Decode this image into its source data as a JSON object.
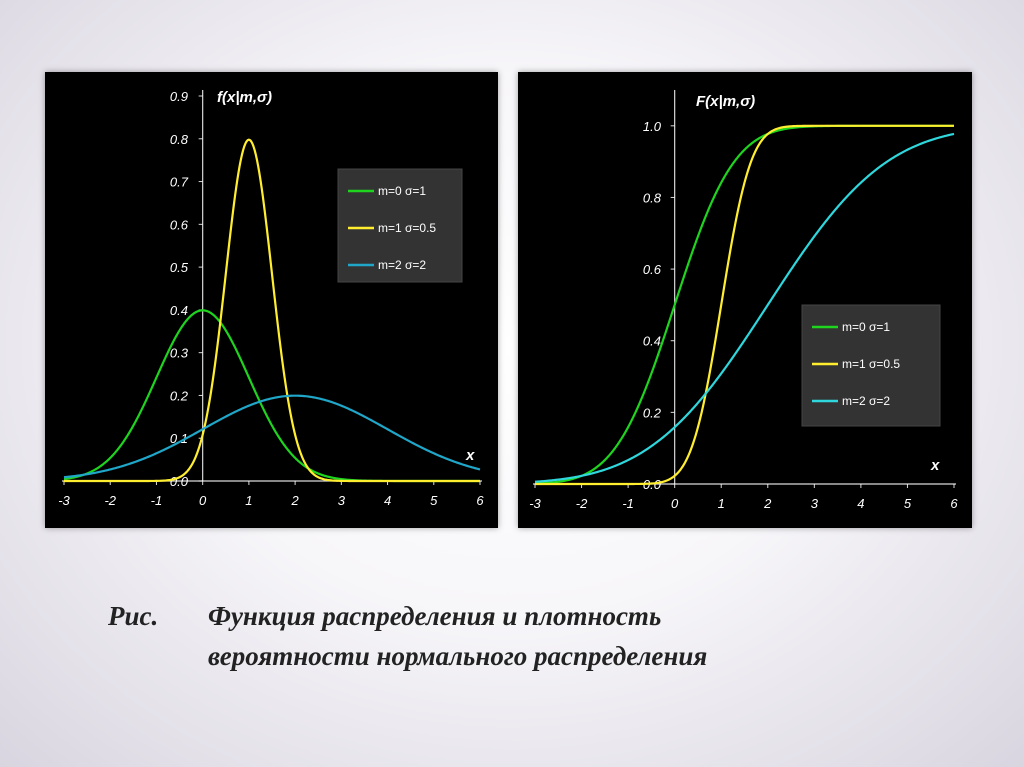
{
  "caption": {
    "prefix": "Рис.",
    "line1": "Функция распределения и плотность",
    "line2": "вероятности нормального распределения"
  },
  "chart_data": [
    {
      "type": "line",
      "title": "",
      "ylabel": "f(x|m,σ)",
      "xlabel": "x",
      "xlim": [
        -3,
        6
      ],
      "ylim": [
        0,
        0.9
      ],
      "x_ticks": [
        -3,
        -2,
        -1,
        0,
        1,
        2,
        3,
        4,
        5,
        6
      ],
      "y_ticks": [
        "0.0",
        "0.1",
        "0.2",
        "0.3",
        "0.4",
        "0.5",
        "0.6",
        "0.7",
        "0.8",
        "0.9"
      ],
      "grid": false,
      "legend_position": "top-right",
      "x": [
        -3,
        -2.5,
        -2,
        -1.5,
        -1,
        -0.5,
        0,
        0.25,
        0.5,
        0.75,
        1,
        1.25,
        1.5,
        2,
        2.5,
        3,
        4,
        5,
        6
      ],
      "series": [
        {
          "name": "m=0  σ=1",
          "color": "#1fd41f",
          "function": "pdf",
          "m": 0,
          "s": 1,
          "values": [
            0.004,
            0.018,
            0.054,
            0.13,
            0.242,
            0.352,
            0.399,
            0.387,
            0.352,
            0.301,
            0.242,
            0.183,
            0.13,
            0.054,
            0.018,
            0.004,
            0.0,
            0.0,
            0.0
          ]
        },
        {
          "name": "m=1  σ=0.5",
          "color": "#ffee30",
          "function": "pdf",
          "m": 1,
          "s": 0.5,
          "values": [
            0.0,
            0.0,
            0.0,
            0.0,
            0.0,
            0.0,
            0.108,
            0.259,
            0.484,
            0.704,
            0.798,
            0.704,
            0.484,
            0.108,
            0.009,
            0.0,
            0.0,
            0.0,
            0.0
          ]
        },
        {
          "name": "m=2  σ=2",
          "color": "#1fa6c8",
          "function": "pdf",
          "m": 2,
          "s": 2,
          "values": [
            0.009,
            0.016,
            0.027,
            0.043,
            0.065,
            0.091,
            0.121,
            0.135,
            0.151,
            0.166,
            0.176,
            0.188,
            0.193,
            0.199,
            0.193,
            0.176,
            0.121,
            0.065,
            0.027
          ]
        }
      ]
    },
    {
      "type": "line",
      "title": "",
      "ylabel": "F(x|m,σ)",
      "xlabel": "x",
      "xlim": [
        -3,
        6
      ],
      "ylim": [
        0,
        1.1
      ],
      "x_ticks": [
        -3,
        -2,
        -1,
        0,
        1,
        2,
        3,
        4,
        5,
        6
      ],
      "y_ticks": [
        "0.0",
        "0.2",
        "0.4",
        "0.6",
        "0.8",
        "1.0"
      ],
      "y_tick_values": [
        0,
        0.2,
        0.4,
        0.6,
        0.8,
        1.0
      ],
      "grid": false,
      "legend_position": "center-right",
      "x": [
        -3,
        -2,
        -1,
        -0.5,
        0,
        0.5,
        1,
        1.5,
        2,
        3,
        4,
        5,
        6
      ],
      "series": [
        {
          "name": "m=0  σ=1",
          "color": "#1fd41f",
          "function": "cdf",
          "m": 0,
          "s": 1,
          "values": [
            0.001,
            0.023,
            0.159,
            0.309,
            0.5,
            0.691,
            0.841,
            0.933,
            0.977,
            0.999,
            1.0,
            1.0,
            1.0
          ]
        },
        {
          "name": "m=1  σ=0.5",
          "color": "#ffee30",
          "function": "cdf",
          "m": 1,
          "s": 0.5,
          "values": [
            0.0,
            0.0,
            0.0,
            0.001,
            0.023,
            0.159,
            0.5,
            0.841,
            0.977,
            1.0,
            1.0,
            1.0,
            1.0
          ]
        },
        {
          "name": "m=2  σ=2",
          "color": "#2fd7dd",
          "function": "cdf",
          "m": 2,
          "s": 2,
          "values": [
            0.006,
            0.023,
            0.067,
            0.106,
            0.159,
            0.227,
            0.309,
            0.401,
            0.5,
            0.691,
            0.841,
            0.933,
            0.977
          ]
        }
      ]
    }
  ]
}
